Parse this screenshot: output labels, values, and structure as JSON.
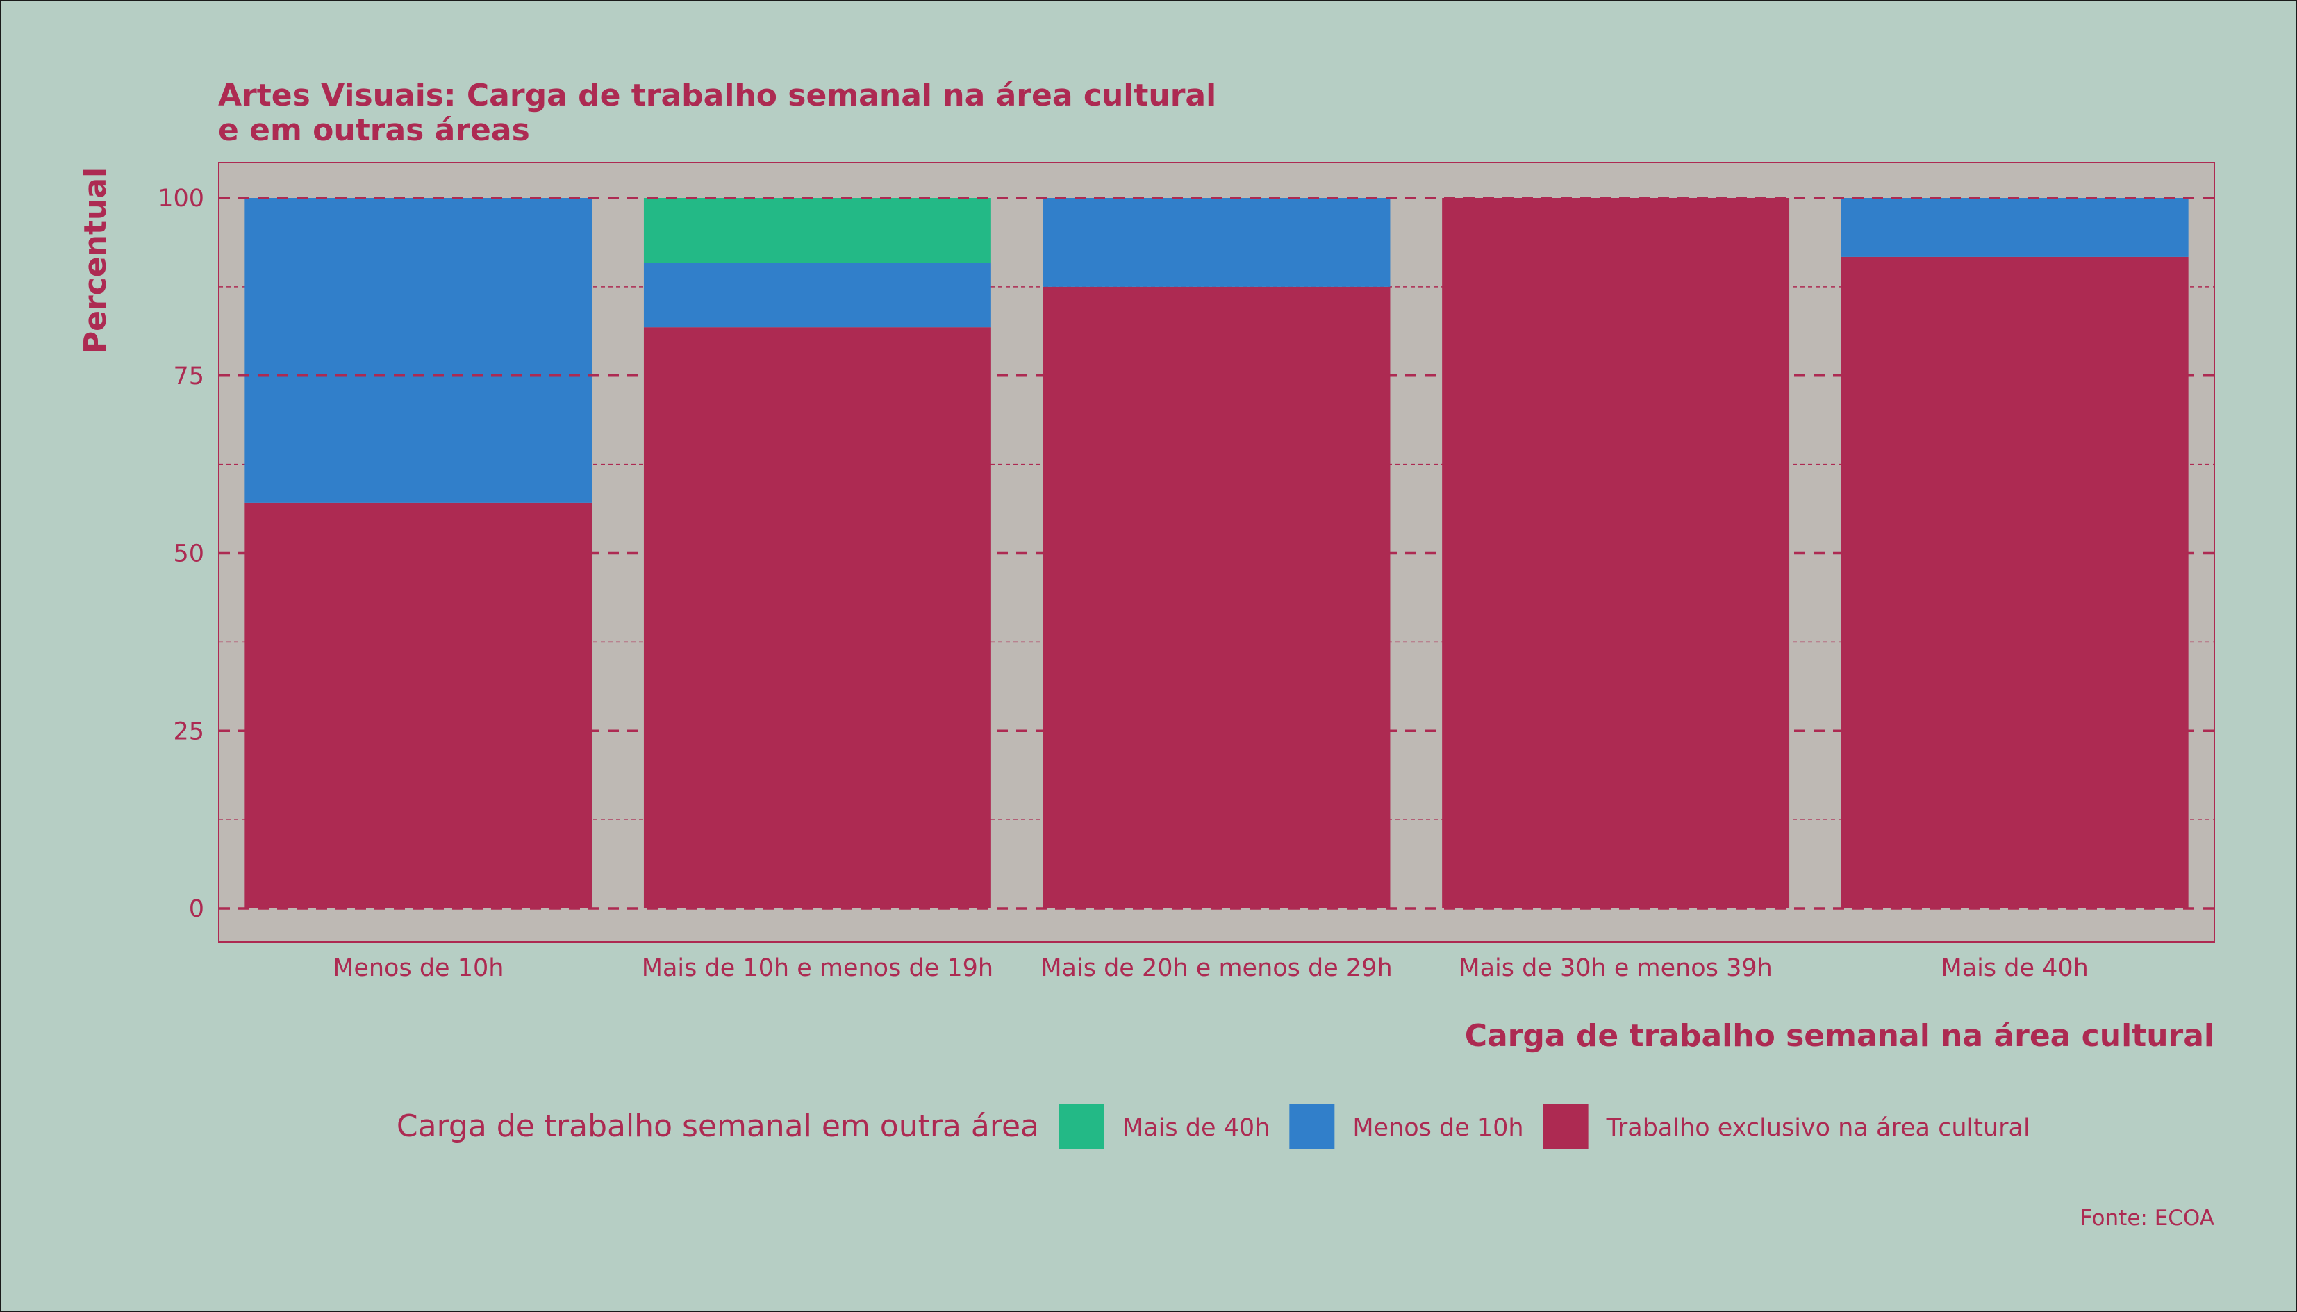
{
  "colors": {
    "page_background": "#b6cec4",
    "panel_background": "#beb9b4",
    "text": "#ad2a52",
    "grid": "#ad2a52"
  },
  "chart_data": {
    "type": "bar",
    "stacked": true,
    "title_lines": [
      "Artes Visuais: Carga de trabalho semanal na área cultural",
      "e em outras áreas"
    ],
    "xlabel": "Carga de trabalho semanal na área cultural",
    "ylabel": "Percentual",
    "ylim": [
      0,
      100
    ],
    "yticks": [
      0,
      25,
      50,
      75,
      100
    ],
    "grid": true,
    "categories": [
      "Menos de 10h",
      "Mais de 10h e menos de 19h",
      "Mais de 20h e menos de 29h",
      "Mais de 30h e menos 39h",
      "Mais de 40h"
    ],
    "series": [
      {
        "name": "Trabalho exclusivo na área cultural",
        "color": "#ad2a52",
        "values": [
          57.1,
          81.8,
          87.5,
          100,
          91.7
        ]
      },
      {
        "name": "Menos de 10h",
        "color": "#317fca",
        "values": [
          42.9,
          9.1,
          12.5,
          0,
          8.3
        ]
      },
      {
        "name": "Mais de 40h",
        "color": "#23b986",
        "values": [
          0,
          9.1,
          0,
          0,
          0
        ]
      }
    ],
    "legend": {
      "title": "Carga de trabalho semanal em outra área",
      "position": "bottom",
      "order": [
        "Mais de 40h",
        "Menos de 10h",
        "Trabalho exclusivo na área cultural"
      ]
    },
    "caption": "Fonte: ECOA"
  }
}
